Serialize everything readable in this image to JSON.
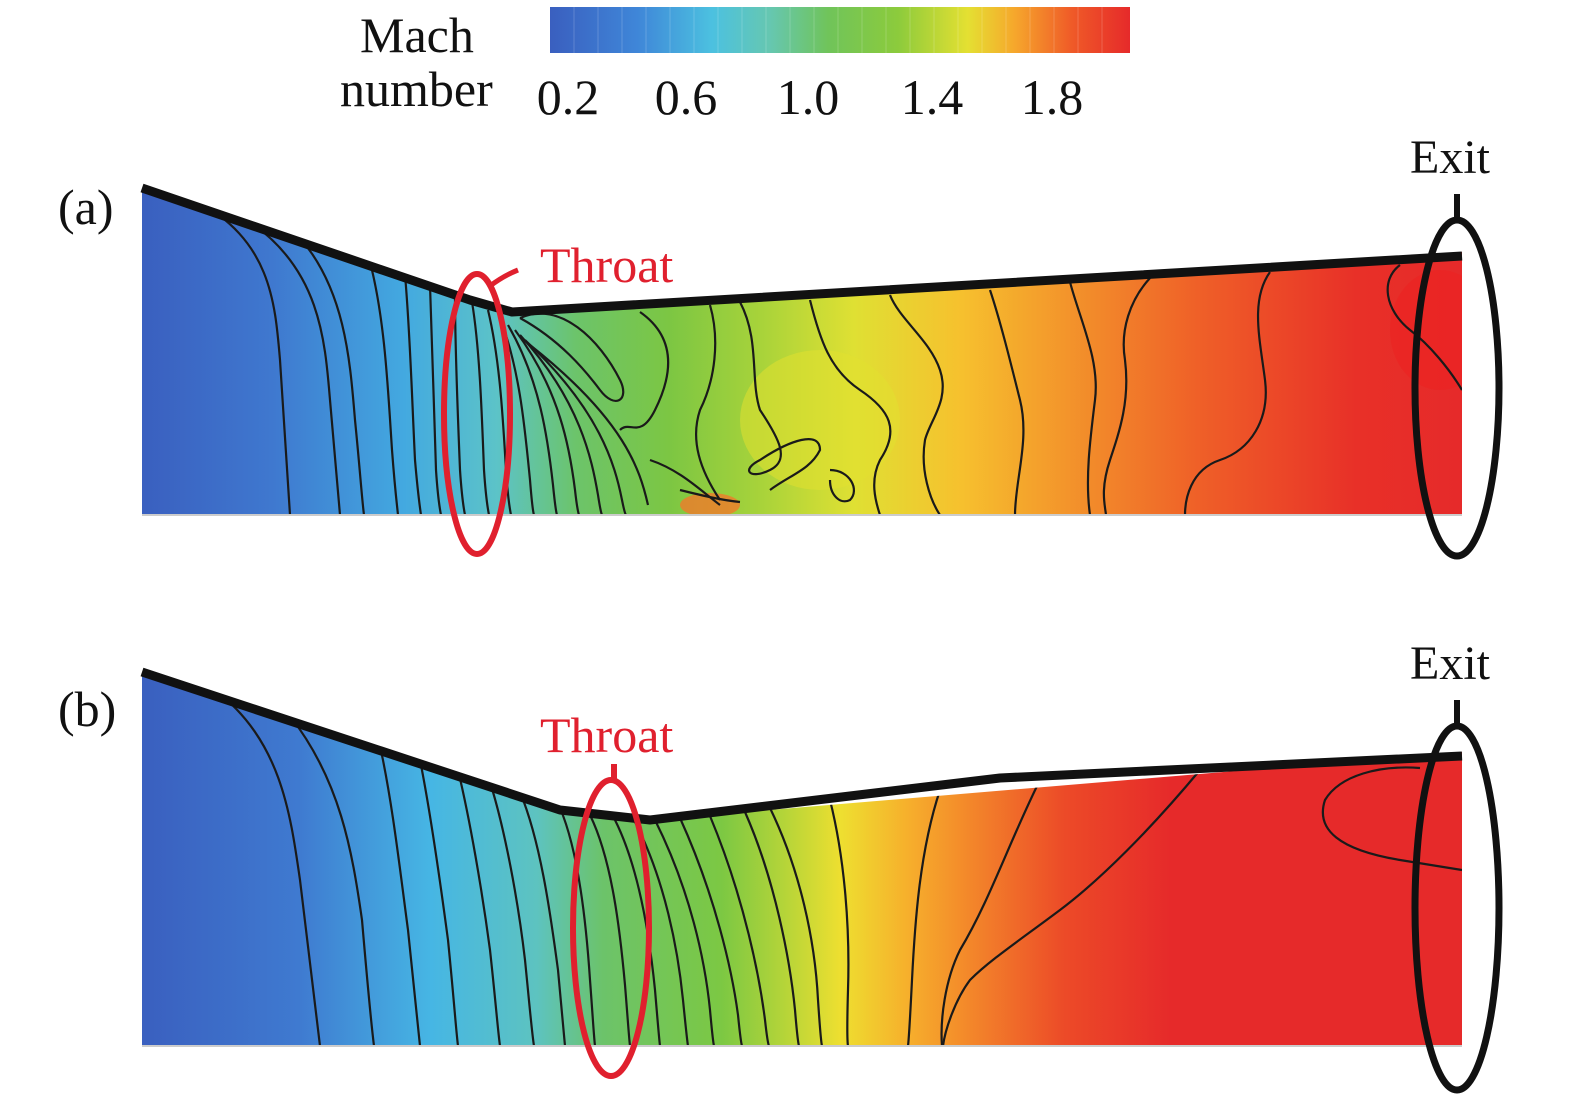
{
  "legend": {
    "title_line1": "Mach",
    "title_line2": "number",
    "ticks": [
      "0.2",
      "0.6",
      "1.0",
      "1.4",
      "1.8"
    ],
    "colors": [
      "#3a5fbf",
      "#2f86d8",
      "#46b6e4",
      "#64c7bd",
      "#6bc46a",
      "#7cc843",
      "#a6d23a",
      "#e3df30",
      "#f6b02c",
      "#f3852a",
      "#ef5428",
      "#e62a2a"
    ]
  },
  "panels": [
    {
      "label": "(a)",
      "throat_label": "Throat",
      "exit_label": "Exit"
    },
    {
      "label": "(b)",
      "throat_label": "Throat",
      "exit_label": "Exit"
    }
  ],
  "colors": {
    "throat_marker": "#e0202e",
    "exit_marker": "#111111",
    "wall": "#111111"
  }
}
